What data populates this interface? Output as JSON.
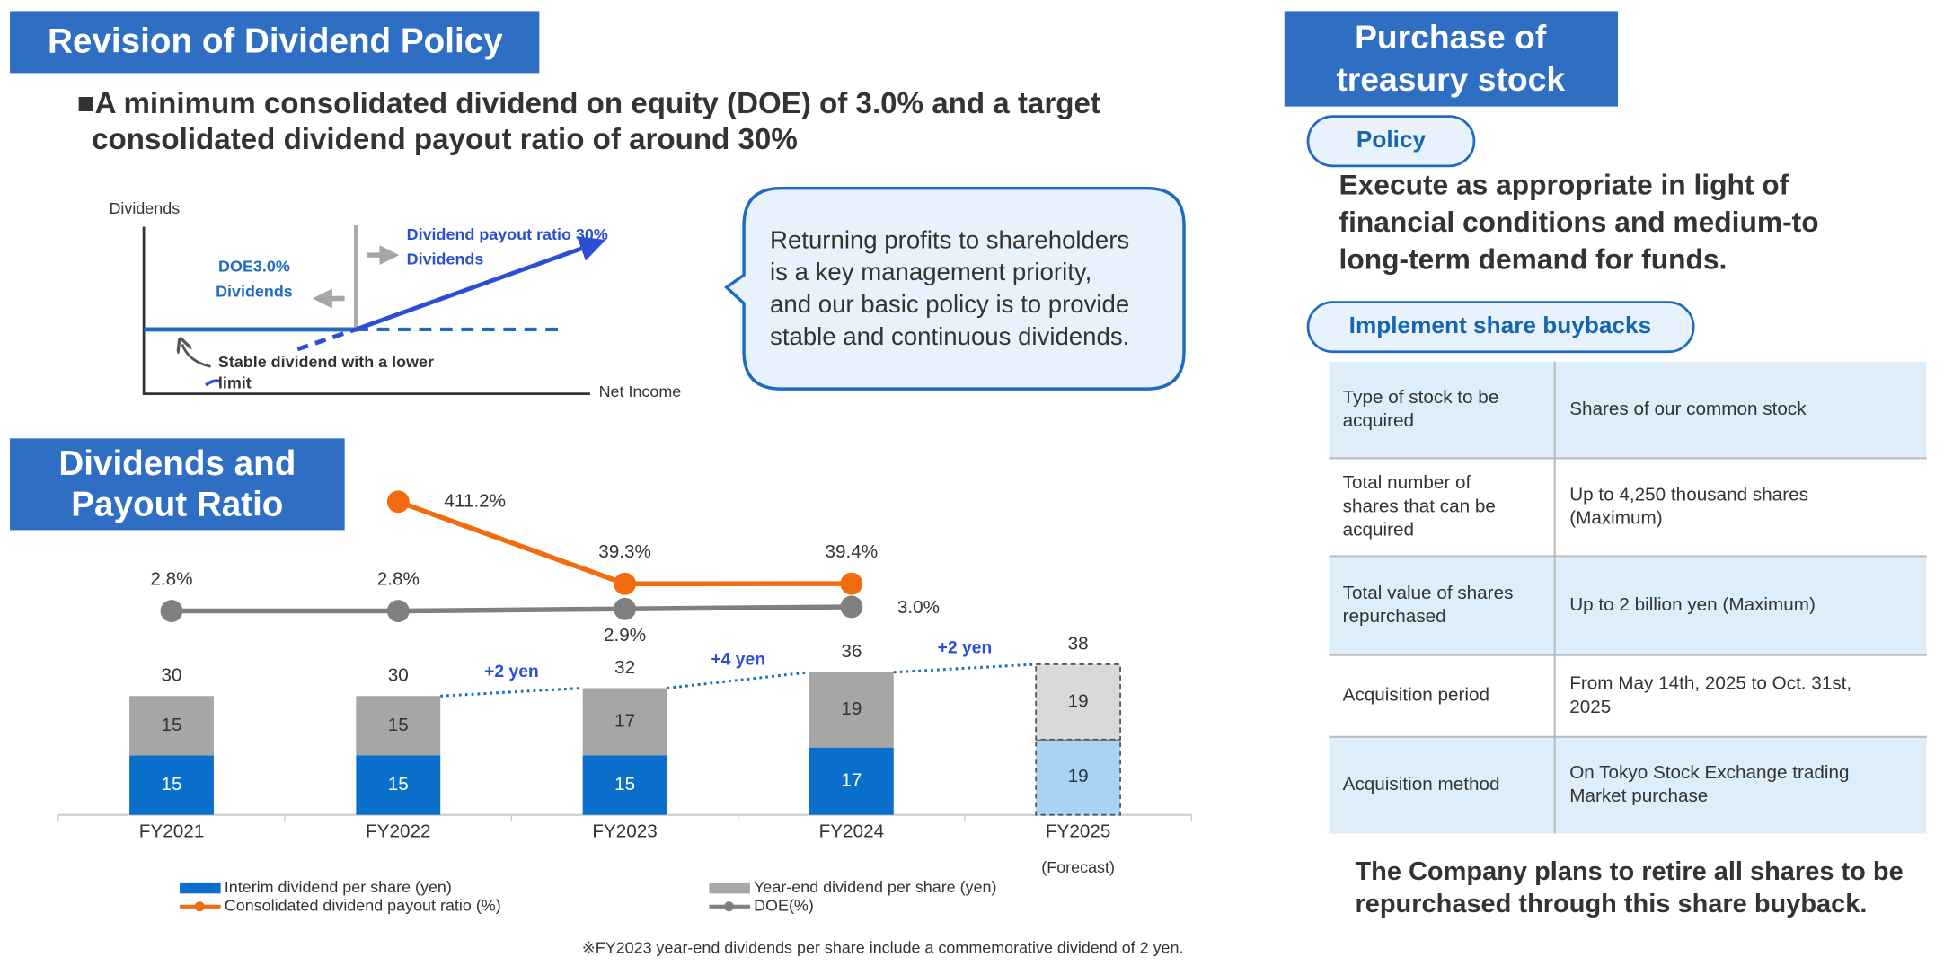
{
  "header": {
    "title": "Revision of Dividend Policy",
    "policy": [
      "■A minimum consolidated dividend on equity (DOE) of 3.0% and a target",
      "consolidated dividend payout ratio of around 30%"
    ]
  },
  "diagram": {
    "y_label": "Dividends",
    "x_label": "Net Income",
    "payout_label": [
      "Dividend payout ratio 30%",
      "Dividends"
    ],
    "doe_label": [
      "DOE3.0%",
      "Dividends"
    ],
    "stable_label": [
      "Stable dividend with a lower",
      "limit"
    ]
  },
  "callout": [
    "Returning profits to shareholders",
    "is a key management priority,",
    "and our basic policy is to provide",
    "stable and continuous dividends."
  ],
  "chart_data": {
    "type": "stacked_bar_line",
    "title": [
      "Dividends and",
      "Payout Ratio"
    ],
    "categories": [
      "FY2021",
      "FY2022",
      "FY2023",
      "FY2024",
      "FY2025"
    ],
    "category_notes": [
      null,
      null,
      null,
      null,
      "(Forecast)"
    ],
    "ylim": [
      0,
      60
    ],
    "series": [
      {
        "name": "Interim dividend per share (yen)",
        "type": "bar",
        "color": "#0a6fca",
        "forecast_color": "#a9d3f5",
        "values": [
          15,
          15,
          15,
          17,
          19
        ]
      },
      {
        "name": "Year-end dividend per share (yen)",
        "type": "bar",
        "color": "#a6a6a6",
        "forecast_color": "#d9d9d9",
        "values": [
          15,
          15,
          17,
          19,
          19
        ]
      },
      {
        "name": "Consolidated dividend payout ratio (%)",
        "type": "line",
        "axis": "y2",
        "color": "#f26c0f",
        "values": [
          null,
          411.2,
          39.3,
          39.4,
          null
        ],
        "value_labels": [
          null,
          "411.2%",
          "39.3%",
          "39.4%",
          null
        ]
      },
      {
        "name": "DOE(%)",
        "type": "line",
        "axis": "y3",
        "color": "#808080",
        "values": [
          2.8,
          2.8,
          2.9,
          3.0,
          null
        ],
        "value_labels": [
          "2.8%",
          "2.8%",
          "2.9%",
          "3.0%",
          null
        ]
      }
    ],
    "y2lim": [
      10,
      1000
    ],
    "y2_log": true,
    "y3lim": [
      0,
      6
    ],
    "totals": [
      30,
      30,
      32,
      36,
      38
    ],
    "annotations": [
      "+2 yen",
      "+4 yen",
      "+2 yen"
    ],
    "footnote": "※FY2023 year-end dividends per share include a commemorative dividend of 2 yen."
  },
  "buyback": {
    "title": [
      "Purchase of",
      "treasury stock"
    ],
    "policy_label": "Policy",
    "policy": [
      "Execute as appropriate in light of",
      "financial conditions and medium-to",
      "long-term demand for funds."
    ],
    "implement_label": "Implement share buybacks",
    "table": {
      "rows": [
        [
          [
            "Type of stock to be",
            "acquired"
          ],
          [
            "Shares of our common stock"
          ]
        ],
        [
          [
            "Total number of",
            "shares that can be",
            "acquired"
          ],
          [
            "Up to 4,250 thousand shares",
            "(Maximum)"
          ]
        ],
        [
          [
            "Total value of shares",
            "repurchased"
          ],
          [
            "Up to 2 billion yen (Maximum)"
          ]
        ],
        [
          [
            "Acquisition period"
          ],
          [
            "From May 14th, 2025 to Oct. 31st,",
            "2025"
          ]
        ],
        [
          [
            "Acquisition method"
          ],
          [
            "On Tokyo Stock Exchange trading",
            "Market purchase"
          ]
        ]
      ]
    },
    "conclusion": [
      "The Company plans to retire all shares to be",
      "repurchased through this share buyback."
    ]
  }
}
